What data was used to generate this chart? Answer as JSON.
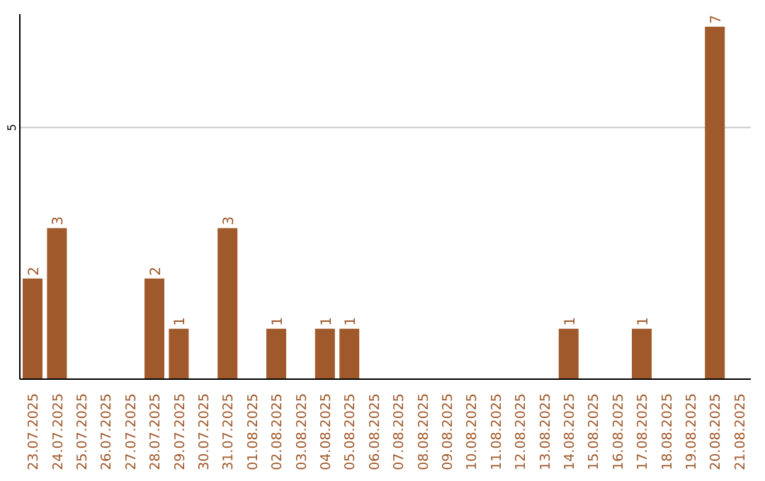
{
  "chart_data": {
    "type": "bar",
    "categories": [
      "23.07.2025",
      "24.07.2025",
      "25.07.2025",
      "26.07.2025",
      "27.07.2025",
      "28.07.2025",
      "29.07.2025",
      "30.07.2025",
      "31.07.2025",
      "01.08.2025",
      "02.08.2025",
      "03.08.2025",
      "04.08.2025",
      "05.08.2025",
      "06.08.2025",
      "07.08.2025",
      "08.08.2025",
      "09.08.2025",
      "10.08.2025",
      "11.08.2025",
      "12.08.2025",
      "13.08.2025",
      "14.08.2025",
      "15.08.2025",
      "16.08.2025",
      "17.08.2025",
      "18.08.2025",
      "19.08.2025",
      "20.08.2025",
      "21.08.2025"
    ],
    "values": [
      2,
      3,
      0,
      0,
      0,
      2,
      1,
      0,
      3,
      0,
      1,
      0,
      1,
      1,
      0,
      0,
      0,
      0,
      0,
      0,
      0,
      0,
      1,
      0,
      0,
      1,
      0,
      0,
      7,
      0
    ],
    "value_labels": [
      "2",
      "3",
      null,
      null,
      null,
      "2",
      "1",
      null,
      "3",
      null,
      "1",
      null,
      "1",
      "1",
      null,
      null,
      null,
      null,
      null,
      null,
      null,
      null,
      "1",
      null,
      null,
      "1",
      null,
      null,
      "7",
      null
    ],
    "color": "#a0592b",
    "ylim": [
      0,
      7.25
    ],
    "yticks": [
      5
    ],
    "grid": "y"
  }
}
